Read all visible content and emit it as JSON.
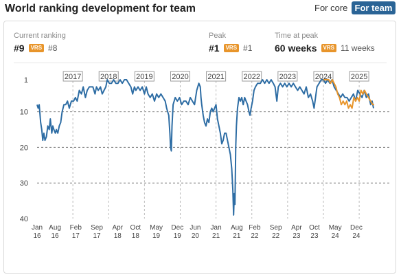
{
  "header": {
    "title": "World ranking development for team",
    "toggle_core": "For core",
    "toggle_team": "For team"
  },
  "stats": {
    "current_label": "Current ranking",
    "current_value": "#9",
    "current_vrs": "#8",
    "peak_label": "Peak",
    "peak_value": "#1",
    "peak_vrs": "#1",
    "time_label": "Time at peak",
    "time_value": "60 weeks",
    "time_vrs": "11 weeks",
    "vrs_badge": "VRS"
  },
  "colors": {
    "team": "#2e6da4",
    "vrs": "#e8952b",
    "toggle_active": "#2a6496"
  },
  "chart_data": {
    "type": "line",
    "y_axis": {
      "inverted": true,
      "ticks": [
        1,
        10,
        20,
        30,
        40
      ],
      "range": [
        1,
        40
      ]
    },
    "x_range": [
      2016.0,
      2025.42
    ],
    "year_markers": [
      "2017",
      "2018",
      "2019",
      "2020",
      "2021",
      "2022",
      "2023",
      "2024",
      "2025"
    ],
    "year_marker_x": [
      2017.0,
      2018.0,
      2019.0,
      2020.0,
      2021.0,
      2022.0,
      2023.0,
      2024.0,
      2025.0
    ],
    "x_ticks": [
      {
        "x": 2016.0,
        "label": "Jan",
        "sub": "16"
      },
      {
        "x": 2016.5,
        "label": "Aug",
        "sub": "16"
      },
      {
        "x": 2017.08,
        "label": "Feb",
        "sub": "17"
      },
      {
        "x": 2017.67,
        "label": "Sep",
        "sub": "17"
      },
      {
        "x": 2018.25,
        "label": "Apr",
        "sub": "18"
      },
      {
        "x": 2018.75,
        "label": "Oct",
        "sub": "18"
      },
      {
        "x": 2019.33,
        "label": "May",
        "sub": "19"
      },
      {
        "x": 2019.92,
        "label": "Dec",
        "sub": "19"
      },
      {
        "x": 2020.42,
        "label": "Jun",
        "sub": "20"
      },
      {
        "x": 2021.0,
        "label": "Jan",
        "sub": "21"
      },
      {
        "x": 2021.58,
        "label": "Aug",
        "sub": "21"
      },
      {
        "x": 2022.08,
        "label": "Feb",
        "sub": "22"
      },
      {
        "x": 2022.67,
        "label": "Sep",
        "sub": "22"
      },
      {
        "x": 2023.25,
        "label": "Apr",
        "sub": "23"
      },
      {
        "x": 2023.75,
        "label": "Oct",
        "sub": "23"
      },
      {
        "x": 2024.33,
        "label": "May",
        "sub": "24"
      },
      {
        "x": 2024.92,
        "label": "Dec",
        "sub": "24"
      }
    ],
    "grid_dashed": [
      10,
      20,
      30
    ],
    "series": [
      {
        "key": "team",
        "points": [
          [
            2016.0,
            8
          ],
          [
            2016.03,
            9
          ],
          [
            2016.06,
            8
          ],
          [
            2016.1,
            13
          ],
          [
            2016.13,
            15
          ],
          [
            2016.16,
            18
          ],
          [
            2016.19,
            16
          ],
          [
            2016.22,
            18
          ],
          [
            2016.26,
            17
          ],
          [
            2016.3,
            14
          ],
          [
            2016.34,
            15
          ],
          [
            2016.37,
            12
          ],
          [
            2016.41,
            16
          ],
          [
            2016.44,
            14
          ],
          [
            2016.47,
            15
          ],
          [
            2016.51,
            16
          ],
          [
            2016.54,
            15
          ],
          [
            2016.58,
            16
          ],
          [
            2016.62,
            14
          ],
          [
            2016.66,
            13
          ],
          [
            2016.7,
            10
          ],
          [
            2016.75,
            8
          ],
          [
            2016.8,
            8
          ],
          [
            2016.85,
            7
          ],
          [
            2016.9,
            9
          ],
          [
            2016.96,
            7
          ],
          [
            2017.02,
            7
          ],
          [
            2017.07,
            6
          ],
          [
            2017.12,
            7
          ],
          [
            2017.18,
            4
          ],
          [
            2017.24,
            5
          ],
          [
            2017.29,
            3
          ],
          [
            2017.35,
            6
          ],
          [
            2017.4,
            4
          ],
          [
            2017.46,
            3
          ],
          [
            2017.51,
            3
          ],
          [
            2017.56,
            3
          ],
          [
            2017.62,
            5
          ],
          [
            2017.66,
            3
          ],
          [
            2017.71,
            4
          ],
          [
            2017.77,
            3
          ],
          [
            2017.82,
            5
          ],
          [
            2017.87,
            4
          ],
          [
            2017.92,
            3
          ],
          [
            2017.96,
            1
          ],
          [
            2018.02,
            2
          ],
          [
            2018.08,
            2
          ],
          [
            2018.14,
            1
          ],
          [
            2018.2,
            2
          ],
          [
            2018.26,
            2
          ],
          [
            2018.32,
            1
          ],
          [
            2018.38,
            2
          ],
          [
            2018.44,
            1
          ],
          [
            2018.5,
            1
          ],
          [
            2018.56,
            2
          ],
          [
            2018.62,
            3
          ],
          [
            2018.67,
            5
          ],
          [
            2018.72,
            3
          ],
          [
            2018.76,
            4
          ],
          [
            2018.82,
            3
          ],
          [
            2018.88,
            4
          ],
          [
            2018.94,
            3
          ],
          [
            2019.0,
            5
          ],
          [
            2019.05,
            3
          ],
          [
            2019.1,
            5
          ],
          [
            2019.16,
            6
          ],
          [
            2019.22,
            5
          ],
          [
            2019.28,
            7
          ],
          [
            2019.34,
            5
          ],
          [
            2019.4,
            6
          ],
          [
            2019.46,
            5
          ],
          [
            2019.52,
            6
          ],
          [
            2019.58,
            7
          ],
          [
            2019.62,
            9
          ],
          [
            2019.65,
            10
          ],
          [
            2019.68,
            11
          ],
          [
            2019.71,
            16
          ],
          [
            2019.73,
            20
          ],
          [
            2019.75,
            21
          ],
          [
            2019.77,
            14
          ],
          [
            2019.8,
            8
          ],
          [
            2019.86,
            6
          ],
          [
            2019.92,
            7
          ],
          [
            2019.98,
            6
          ],
          [
            2020.04,
            8
          ],
          [
            2020.1,
            7
          ],
          [
            2020.16,
            7
          ],
          [
            2020.22,
            8
          ],
          [
            2020.28,
            6
          ],
          [
            2020.34,
            7
          ],
          [
            2020.4,
            8
          ],
          [
            2020.46,
            4
          ],
          [
            2020.52,
            2
          ],
          [
            2020.56,
            3
          ],
          [
            2020.58,
            6
          ],
          [
            2020.6,
            8
          ],
          [
            2020.64,
            11
          ],
          [
            2020.68,
            13
          ],
          [
            2020.72,
            14
          ],
          [
            2020.76,
            12
          ],
          [
            2020.8,
            13
          ],
          [
            2020.84,
            10
          ],
          [
            2020.88,
            9
          ],
          [
            2020.92,
            10
          ],
          [
            2020.96,
            9
          ],
          [
            2021.0,
            8
          ],
          [
            2021.04,
            12
          ],
          [
            2021.08,
            14
          ],
          [
            2021.12,
            16
          ],
          [
            2021.16,
            19
          ],
          [
            2021.2,
            18
          ],
          [
            2021.24,
            16
          ],
          [
            2021.28,
            16
          ],
          [
            2021.32,
            18
          ],
          [
            2021.36,
            20
          ],
          [
            2021.4,
            22
          ],
          [
            2021.44,
            26
          ],
          [
            2021.47,
            32
          ],
          [
            2021.49,
            39
          ],
          [
            2021.51,
            33
          ],
          [
            2021.53,
            36
          ],
          [
            2021.55,
            20
          ],
          [
            2021.57,
            14
          ],
          [
            2021.6,
            9
          ],
          [
            2021.64,
            6
          ],
          [
            2021.68,
            7
          ],
          [
            2021.72,
            6
          ],
          [
            2021.76,
            8
          ],
          [
            2021.8,
            6
          ],
          [
            2021.84,
            7
          ],
          [
            2021.88,
            8
          ],
          [
            2021.92,
            10
          ],
          [
            2021.95,
            11
          ],
          [
            2021.98,
            9
          ],
          [
            2022.02,
            7
          ],
          [
            2022.06,
            4
          ],
          [
            2022.1,
            3
          ],
          [
            2022.16,
            2
          ],
          [
            2022.24,
            2
          ],
          [
            2022.3,
            1
          ],
          [
            2022.36,
            2
          ],
          [
            2022.42,
            1
          ],
          [
            2022.48,
            2
          ],
          [
            2022.54,
            1
          ],
          [
            2022.6,
            2
          ],
          [
            2022.65,
            3
          ],
          [
            2022.7,
            7
          ],
          [
            2022.74,
            3
          ],
          [
            2022.8,
            2
          ],
          [
            2022.86,
            3
          ],
          [
            2022.92,
            2
          ],
          [
            2022.98,
            3
          ],
          [
            2023.04,
            2
          ],
          [
            2023.1,
            3
          ],
          [
            2023.16,
            2
          ],
          [
            2023.22,
            3
          ],
          [
            2023.28,
            4
          ],
          [
            2023.34,
            3
          ],
          [
            2023.4,
            4
          ],
          [
            2023.46,
            5
          ],
          [
            2023.52,
            3
          ],
          [
            2023.58,
            6
          ],
          [
            2023.64,
            5
          ],
          [
            2023.7,
            7
          ],
          [
            2023.74,
            9
          ],
          [
            2023.78,
            6
          ],
          [
            2023.82,
            3
          ],
          [
            2023.88,
            2
          ],
          [
            2023.94,
            1
          ],
          [
            2024.0,
            1
          ],
          [
            2024.06,
            2
          ],
          [
            2024.12,
            1
          ],
          [
            2024.18,
            2
          ],
          [
            2024.24,
            1
          ],
          [
            2024.3,
            3
          ],
          [
            2024.36,
            4
          ],
          [
            2024.42,
            5
          ],
          [
            2024.48,
            6
          ],
          [
            2024.54,
            5
          ],
          [
            2024.6,
            6
          ],
          [
            2024.66,
            6
          ],
          [
            2024.72,
            7
          ],
          [
            2024.78,
            6
          ],
          [
            2024.84,
            5
          ],
          [
            2024.9,
            7
          ],
          [
            2024.96,
            4
          ],
          [
            2025.02,
            5
          ],
          [
            2025.08,
            6
          ],
          [
            2025.14,
            4
          ],
          [
            2025.2,
            6
          ],
          [
            2025.26,
            5
          ],
          [
            2025.32,
            8
          ],
          [
            2025.36,
            7
          ],
          [
            2025.4,
            9
          ]
        ]
      },
      {
        "key": "vrs",
        "points": [
          [
            2024.0,
            1
          ],
          [
            2024.05,
            1
          ],
          [
            2024.1,
            1
          ],
          [
            2024.15,
            1
          ],
          [
            2024.2,
            2
          ],
          [
            2024.25,
            1
          ],
          [
            2024.3,
            2
          ],
          [
            2024.35,
            3
          ],
          [
            2024.4,
            5
          ],
          [
            2024.45,
            6
          ],
          [
            2024.5,
            8
          ],
          [
            2024.55,
            7
          ],
          [
            2024.6,
            8
          ],
          [
            2024.65,
            7
          ],
          [
            2024.7,
            9
          ],
          [
            2024.75,
            8
          ],
          [
            2024.8,
            9
          ],
          [
            2024.85,
            6
          ],
          [
            2024.9,
            7
          ],
          [
            2024.95,
            6
          ],
          [
            2025.0,
            7
          ],
          [
            2025.05,
            4
          ],
          [
            2025.1,
            5
          ],
          [
            2025.15,
            4
          ],
          [
            2025.2,
            5
          ],
          [
            2025.26,
            6
          ],
          [
            2025.32,
            7
          ],
          [
            2025.38,
            8
          ],
          [
            2025.42,
            8
          ]
        ]
      }
    ]
  }
}
